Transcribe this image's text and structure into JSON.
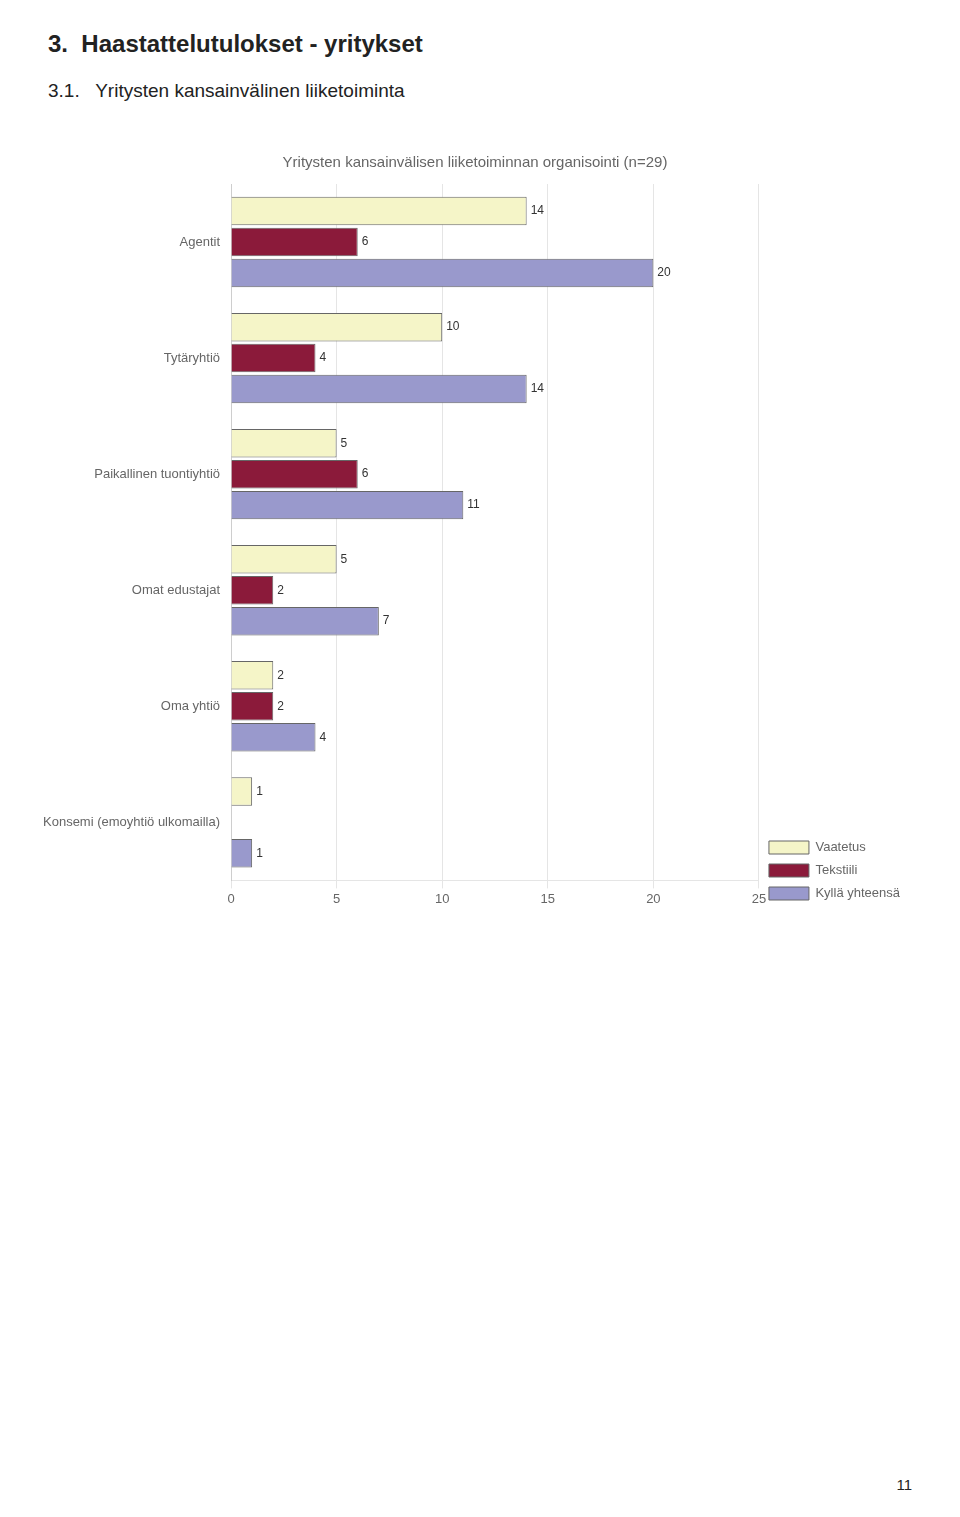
{
  "chart_data": {
    "type": "bar",
    "orientation": "horizontal",
    "title": "Yritysten kansainvälisen liiketoiminnan organisointi (n=29)",
    "annotations": [
      "3.  Haastattelutulokset - yritykset",
      "3.1.   Yritysten kansainvälinen liiketoiminta",
      "11"
    ],
    "categories": [
      "Agentit",
      "Tytäryhtiö",
      "Paikallinen tuontiyhtiö",
      "Omat edustajat",
      "Oma yhtiö",
      "Konsemi (emoyhtiö ulkomailla)"
    ],
    "series": [
      {
        "name": "Vaatetus",
        "values": [
          14,
          10,
          5,
          5,
          2,
          1
        ],
        "color": "#f5f5c8"
      },
      {
        "name": "Tekstiili",
        "values": [
          6,
          4,
          6,
          2,
          2,
          0
        ],
        "color": "#8b1a3a"
      },
      {
        "name": "Kyllä yhteensä",
        "values": [
          20,
          14,
          11,
          7,
          4,
          1
        ],
        "color": "#9999cc"
      }
    ],
    "xlim": [
      0,
      25
    ],
    "xticks": [
      0,
      5,
      10,
      15,
      20,
      25
    ],
    "grid": true,
    "legend": "lower right",
    "data_labels": true
  }
}
